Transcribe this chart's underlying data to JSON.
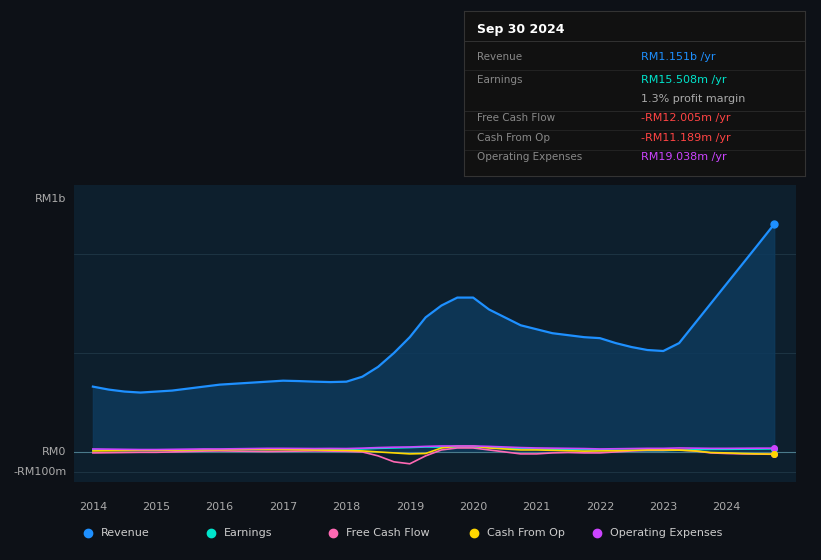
{
  "bg_color": "#0d1117",
  "chart_bg": "#0d1f2d",
  "title": "Sep 30 2024",
  "info_box": {
    "rows": [
      {
        "label": "Revenue",
        "value": "RM1.151b /yr",
        "value_color": "#1e90ff"
      },
      {
        "label": "Earnings",
        "value": "RM15.508m /yr",
        "value_color": "#00e5cc"
      },
      {
        "label": "",
        "value": "1.3% profit margin",
        "value_color": "#aaaaaa"
      },
      {
        "label": "Free Cash Flow",
        "value": "-RM12.005m /yr",
        "value_color": "#ff4444"
      },
      {
        "label": "Cash From Op",
        "value": "-RM11.189m /yr",
        "value_color": "#ff4444"
      },
      {
        "label": "Operating Expenses",
        "value": "RM19.038m /yr",
        "value_color": "#cc44ff"
      }
    ]
  },
  "legend": [
    {
      "label": "Revenue",
      "color": "#1e90ff"
    },
    {
      "label": "Earnings",
      "color": "#00e5cc"
    },
    {
      "label": "Free Cash Flow",
      "color": "#ff69b4"
    },
    {
      "label": "Cash From Op",
      "color": "#ffd700"
    },
    {
      "label": "Operating Expenses",
      "color": "#cc44ff"
    }
  ],
  "revenue_color": "#1e90ff",
  "earnings_color": "#00e5cc",
  "fcf_color": "#ff69b4",
  "cashfromop_color": "#ffd700",
  "opex_color": "#cc44ff",
  "fill_color": "#0d3a5c",
  "xlabel_years": [
    2014,
    2015,
    2016,
    2017,
    2018,
    2019,
    2020,
    2021,
    2022,
    2023,
    2024
  ]
}
